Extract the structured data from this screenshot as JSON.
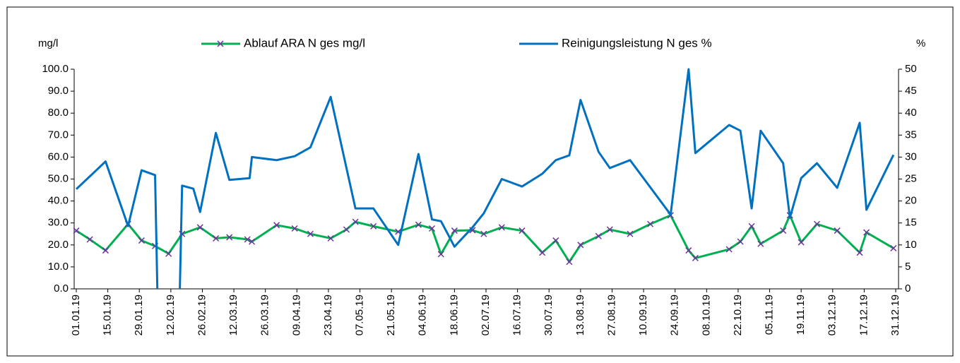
{
  "chart_data": {
    "type": "line",
    "y_label": "mg/l",
    "y2_label": "%",
    "xlim": [
      "01.01.19",
      "31.12.19"
    ],
    "xticks": [
      "01.01.19",
      "15.01.19",
      "29.01.19",
      "12.02.19",
      "26.02.19",
      "12.03.19",
      "26.03.19",
      "09.04.19",
      "23.04.19",
      "07.05.19",
      "21.05.19",
      "04.06.19",
      "18.06.19",
      "02.07.19",
      "16.07.19",
      "30.07.19",
      "13.08.19",
      "27.08.19",
      "10.09.19",
      "24.09.19",
      "08.10.19",
      "22.10.19",
      "05.11.19",
      "19.11.19",
      "03.12.19",
      "17.12.19",
      "31.12.19"
    ],
    "ylim": [
      0,
      100
    ],
    "yticks": [
      {
        "value": 0,
        "label": "0.0"
      },
      {
        "value": 10,
        "label": "10.0"
      },
      {
        "value": 20,
        "label": "20.0"
      },
      {
        "value": 30,
        "label": "30.0"
      },
      {
        "value": 40,
        "label": "40.0"
      },
      {
        "value": 50,
        "label": "50.0"
      },
      {
        "value": 60,
        "label": "60.0"
      },
      {
        "value": 70,
        "label": "70.0"
      },
      {
        "value": 80,
        "label": "80.0"
      },
      {
        "value": 90,
        "label": "90.0"
      },
      {
        "value": 100,
        "label": "100.0"
      }
    ],
    "y2lim": [
      0,
      50
    ],
    "y2ticks": [
      0,
      5,
      10,
      15,
      20,
      25,
      30,
      35,
      40,
      45,
      50
    ],
    "legend": "top",
    "series": [
      {
        "name": "Ablauf ARA N ges mg/l",
        "color": "#00b050",
        "marker_color": "#7030a0",
        "marker": "x",
        "x": [
          "01.01.19",
          "07.01.19",
          "14.01.19",
          "24.01.19",
          "30.01.19",
          "05.02.19",
          "11.02.19",
          "17.02.19",
          "25.02.19",
          "04.03.19",
          "10.03.19",
          "18.03.19",
          "20.03.19",
          "31.03.19",
          "08.04.19",
          "15.04.19",
          "24.04.19",
          "01.05.19",
          "05.05.19",
          "13.05.19",
          "24.05.19",
          "02.06.19",
          "08.06.19",
          "12.06.19",
          "18.06.19",
          "26.06.19",
          "01.07.19",
          "09.07.19",
          "18.07.19",
          "27.07.19",
          "02.08.19",
          "08.08.19",
          "13.08.19",
          "21.08.19",
          "26.08.19",
          "04.09.19",
          "13.09.19",
          "22.09.19",
          "30.09.19",
          "03.10.19",
          "18.10.19",
          "23.10.19",
          "28.10.19",
          "01.11.19",
          "11.11.19",
          "14.11.19",
          "19.11.19",
          "26.11.19",
          "05.12.19",
          "15.12.19",
          "18.12.19",
          "30.12.19"
        ],
        "values": [
          26.5,
          22.5,
          17.5,
          29.5,
          22,
          19.5,
          16,
          25,
          28,
          23,
          23.5,
          22.5,
          21.5,
          29,
          27.5,
          25,
          23,
          27,
          30.5,
          28.5,
          26,
          29.2,
          27.5,
          15.8,
          26.5,
          26.7,
          25,
          28,
          26.5,
          16.5,
          22,
          12.3,
          20,
          24,
          27,
          25,
          29.5,
          33.5,
          17.5,
          14,
          18,
          21.5,
          28.5,
          20.5,
          26.5,
          33.5,
          21.2,
          29.5,
          26.5,
          16.5,
          25.7,
          18.5
        ]
      },
      {
        "name": "Reinigungsleistung N ges %",
        "color": "#0070c0",
        "axis": "y2",
        "x": [
          "01.01.19",
          "07.01.19",
          "14.01.19",
          "24.01.19",
          "30.01.19",
          "05.02.19",
          "06.02.19",
          "11.02.19",
          "16.02.19",
          "17.02.19",
          "22.02.19",
          "25.02.19",
          "04.03.19",
          "10.03.19",
          "19.03.19",
          "20.03.19",
          "31.03.19",
          "08.04.19",
          "15.04.19",
          "24.04.19",
          "05.05.19",
          "13.05.19",
          "24.05.19",
          "02.06.19",
          "08.06.19",
          "12.06.19",
          "18.06.19",
          "26.06.19",
          "01.07.19",
          "09.07.19",
          "18.07.19",
          "27.07.19",
          "02.08.19",
          "08.08.19",
          "13.08.19",
          "21.08.19",
          "26.08.19",
          "04.09.19",
          "22.09.19",
          "30.09.19",
          "03.10.19",
          "18.10.19",
          "23.10.19",
          "28.10.19",
          "01.11.19",
          "11.11.19",
          "14.11.19",
          "19.11.19",
          "26.11.19",
          "05.12.19",
          "15.12.19",
          "18.12.19",
          "30.12.19"
        ],
        "values": [
          22.7,
          25.6,
          29,
          14.3,
          27,
          25.9,
          0,
          null,
          0,
          23.5,
          22.8,
          17.5,
          35.5,
          24.8,
          25.2,
          30,
          29.3,
          30.2,
          32.2,
          43.7,
          18.3,
          18.3,
          10,
          30.7,
          15.8,
          15.4,
          9.6,
          14,
          17.2,
          25,
          23.3,
          26.2,
          29.3,
          30.4,
          43,
          31.2,
          27.5,
          29.3,
          16.9,
          50,
          30.9,
          37.3,
          36,
          18.3,
          36,
          28.6,
          16.2,
          25.2,
          28.6,
          23,
          37.8,
          18,
          30.5
        ]
      }
    ]
  }
}
